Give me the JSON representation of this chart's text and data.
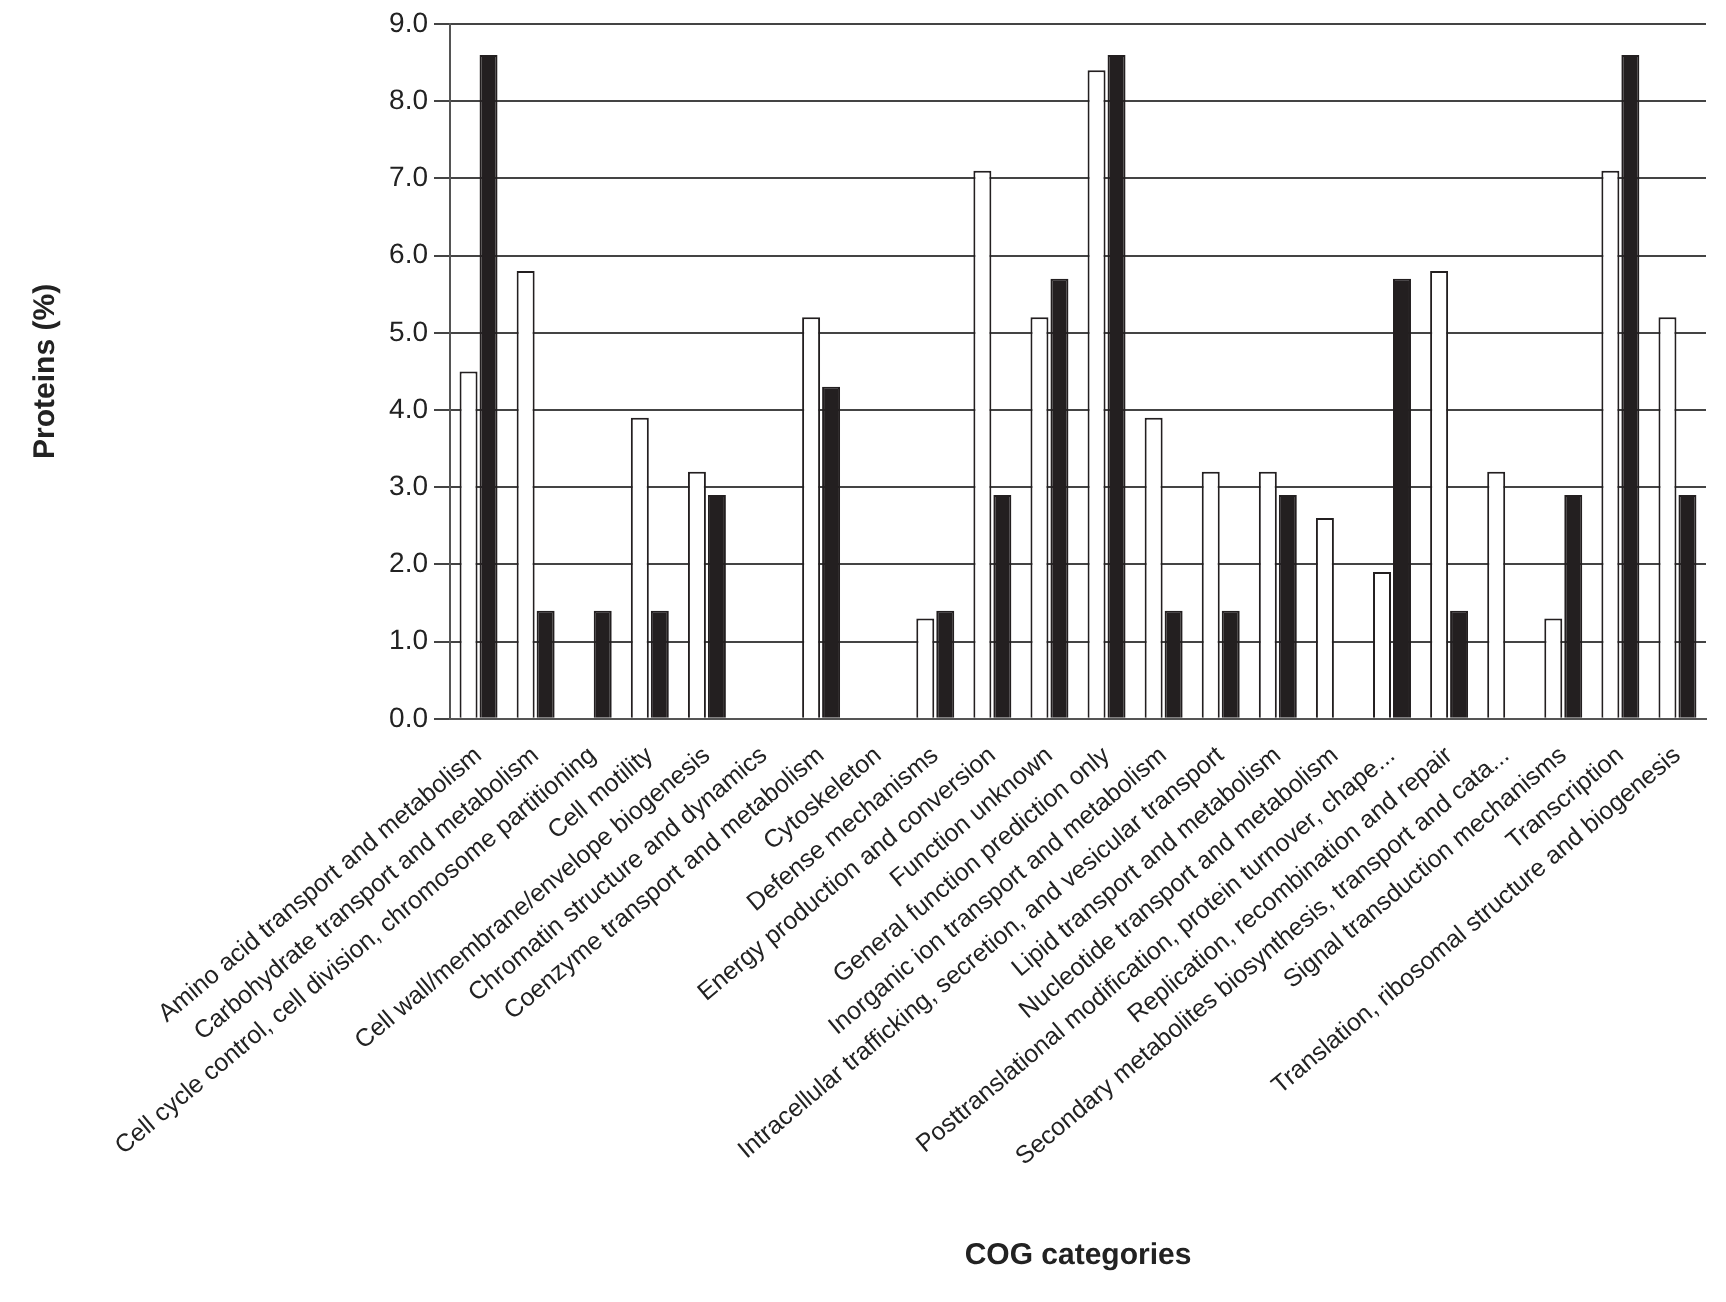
{
  "chart_data": {
    "type": "bar",
    "xlabel": "COG categories",
    "ylabel": "Proteins (%)",
    "categories": [
      "Amino acid transport and metabolism",
      "Carbohydrate transport and metabolism",
      "Cell cycle control, cell division, chromosome partitioning",
      "Cell motility",
      "Cell wall/membrane/envelope biogenesis",
      "Chromatin structure and dynamics",
      "Coenzyme transport and metabolism",
      "Cytoskeleton",
      "Defense mechanisms",
      "Energy production and conversion",
      "Function unknown",
      "General function prediction only",
      "Inorganic ion transport and metabolism",
      "Intracellular trafficking, secretion, and vesicular transport",
      "Lipid transport and metabolism",
      "Nucleotide transport and metabolism",
      "Posttranslational modification, protein turnover, chape...",
      "Replication, recombination and repair",
      "Secondary metabolites biosynthesis, transport and cata...",
      "Signal transduction mechanisms",
      "Transcription",
      "Translation, ribosomal structure and biogenesis"
    ],
    "series": [
      {
        "color": "#ffffff",
        "values": [
          4.5,
          5.8,
          0,
          3.9,
          3.2,
          0,
          5.2,
          0,
          1.3,
          7.1,
          5.2,
          8.4,
          3.9,
          3.2,
          3.2,
          2.6,
          1.9,
          5.8,
          3.2,
          1.3,
          7.1,
          5.2
        ]
      },
      {
        "color": "#231f20",
        "values": [
          8.6,
          1.4,
          1.4,
          1.4,
          2.9,
          0,
          4.3,
          0,
          1.4,
          2.9,
          5.7,
          8.6,
          1.4,
          1.4,
          2.9,
          0,
          5.7,
          1.4,
          0,
          2.9,
          8.6,
          2.9
        ]
      }
    ],
    "ylim": [
      0,
      9
    ],
    "yticks": [
      {
        "value": 0,
        "label": "0.0"
      },
      {
        "value": 1,
        "label": "1.0"
      },
      {
        "value": 2,
        "label": "2.0"
      },
      {
        "value": 3,
        "label": "3.0"
      },
      {
        "value": 4,
        "label": "4.0"
      },
      {
        "value": 5,
        "label": "5.0"
      },
      {
        "value": 6,
        "label": "6.0"
      },
      {
        "value": 7,
        "label": "7.0"
      },
      {
        "value": 8,
        "label": "8.0"
      },
      {
        "value": 9,
        "label": "9.0"
      }
    ],
    "grid": "y",
    "legend": false
  }
}
